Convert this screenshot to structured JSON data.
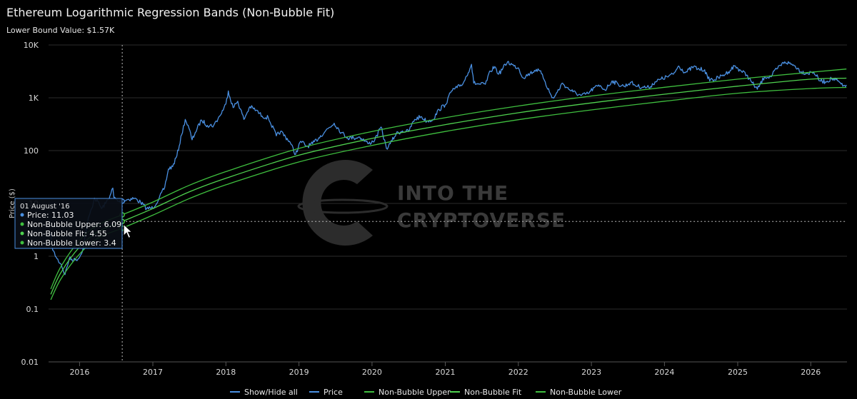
{
  "chart_data": {
    "type": "line",
    "title": "Ethereum Logarithmic Regression Bands (Non-Bubble Fit)",
    "subtitle": "Lower Bound Value: $1.57K",
    "ylabel": "Price ($)",
    "yscale": "log",
    "ylim": [
      0.01,
      10000
    ],
    "y_ticks": [
      {
        "value": 0.01,
        "label": "0.01"
      },
      {
        "value": 0.1,
        "label": "0.1"
      },
      {
        "value": 1,
        "label": "1"
      },
      {
        "value": 10,
        "label": "10"
      },
      {
        "value": 100,
        "label": "100"
      },
      {
        "value": 1000,
        "label": "1K"
      },
      {
        "value": 10000,
        "label": "10K"
      }
    ],
    "xlim": [
      "2015-07-30",
      "2026-07-01"
    ],
    "x_ticks": [
      "2016",
      "2017",
      "2018",
      "2019",
      "2020",
      "2021",
      "2022",
      "2023",
      "2024",
      "2025",
      "2026"
    ],
    "grid": true,
    "legend_position": "bottom",
    "legend_toggle": "Show/Hide all",
    "watermark": [
      "INTO THE",
      "CRYPTOVERSE"
    ],
    "colors": {
      "price": "#4a90e2",
      "bands": "#3fbf3f",
      "bands_fit": "#4fd24f"
    },
    "series": [
      {
        "name": "Price",
        "color": "#4a90e2",
        "points": [
          [
            "2015-08-08",
            2.8
          ],
          [
            "2015-08-20",
            1.3
          ],
          [
            "2015-09-10",
            0.9
          ],
          [
            "2015-10-01",
            0.7
          ],
          [
            "2015-10-20",
            0.45
          ],
          [
            "2015-11-10",
            0.9
          ],
          [
            "2015-12-10",
            0.85
          ],
          [
            "2016-01-01",
            0.95
          ],
          [
            "2016-01-20",
            1.5
          ],
          [
            "2016-02-10",
            4.5
          ],
          [
            "2016-03-01",
            8.0
          ],
          [
            "2016-03-15",
            12.5
          ],
          [
            "2016-04-01",
            11.0
          ],
          [
            "2016-04-20",
            8.0
          ],
          [
            "2016-05-10",
            10.0
          ],
          [
            "2016-06-01",
            14.0
          ],
          [
            "2016-06-15",
            19.5
          ],
          [
            "2016-06-20",
            13.0
          ],
          [
            "2016-07-10",
            11.0
          ],
          [
            "2016-08-01",
            11.03
          ],
          [
            "2016-09-01",
            12.0
          ],
          [
            "2016-10-01",
            12.5
          ],
          [
            "2016-11-01",
            10.5
          ],
          [
            "2016-12-01",
            8.0
          ],
          [
            "2017-01-01",
            8.2
          ],
          [
            "2017-02-01",
            12.5
          ],
          [
            "2017-03-01",
            20.0
          ],
          [
            "2017-03-20",
            45.0
          ],
          [
            "2017-04-10",
            50.0
          ],
          [
            "2017-05-01",
            80.0
          ],
          [
            "2017-05-25",
            200.0
          ],
          [
            "2017-06-12",
            390.0
          ],
          [
            "2017-07-01",
            260.0
          ],
          [
            "2017-07-16",
            160.0
          ],
          [
            "2017-08-01",
            220.0
          ],
          [
            "2017-09-01",
            380.0
          ],
          [
            "2017-10-01",
            300.0
          ],
          [
            "2017-11-01",
            300.0
          ],
          [
            "2017-12-01",
            450.0
          ],
          [
            "2018-01-01",
            760.0
          ],
          [
            "2018-01-13",
            1350.0
          ],
          [
            "2018-02-06",
            650.0
          ],
          [
            "2018-03-01",
            860.0
          ],
          [
            "2018-04-01",
            390.0
          ],
          [
            "2018-05-01",
            680.0
          ],
          [
            "2018-06-01",
            580.0
          ],
          [
            "2018-07-01",
            450.0
          ],
          [
            "2018-08-01",
            420.0
          ],
          [
            "2018-09-10",
            190.0
          ],
          [
            "2018-10-01",
            230.0
          ],
          [
            "2018-11-15",
            150.0
          ],
          [
            "2018-12-15",
            85.0
          ],
          [
            "2019-01-10",
            150.0
          ],
          [
            "2019-02-10",
            120.0
          ],
          [
            "2019-03-10",
            135.0
          ],
          [
            "2019-04-10",
            175.0
          ],
          [
            "2019-05-15",
            240.0
          ],
          [
            "2019-06-26",
            330.0
          ],
          [
            "2019-08-01",
            220.0
          ],
          [
            "2019-09-01",
            175.0
          ],
          [
            "2019-10-01",
            175.0
          ],
          [
            "2019-11-01",
            180.0
          ],
          [
            "2019-12-15",
            135.0
          ],
          [
            "2020-01-15",
            160.0
          ],
          [
            "2020-02-15",
            280.0
          ],
          [
            "2020-03-13",
            110.0
          ],
          [
            "2020-04-01",
            135.0
          ],
          [
            "2020-05-01",
            210.0
          ],
          [
            "2020-06-01",
            235.0
          ],
          [
            "2020-07-01",
            230.0
          ],
          [
            "2020-08-01",
            390.0
          ],
          [
            "2020-09-01",
            440.0
          ],
          [
            "2020-10-01",
            360.0
          ],
          [
            "2020-11-01",
            390.0
          ],
          [
            "2020-12-01",
            600.0
          ],
          [
            "2021-01-01",
            740.0
          ],
          [
            "2021-02-01",
            1350.0
          ],
          [
            "2021-03-01",
            1550.0
          ],
          [
            "2021-04-01",
            1900.0
          ],
          [
            "2021-05-12",
            4300.0
          ],
          [
            "2021-05-23",
            1900.0
          ],
          [
            "2021-06-22",
            1800.0
          ],
          [
            "2021-07-20",
            1800.0
          ],
          [
            "2021-08-15",
            3200.0
          ],
          [
            "2021-09-05",
            3900.0
          ],
          [
            "2021-09-25",
            2800.0
          ],
          [
            "2021-11-08",
            4800.0
          ],
          [
            "2021-12-10",
            4000.0
          ],
          [
            "2022-01-01",
            3700.0
          ],
          [
            "2022-01-24",
            2400.0
          ],
          [
            "2022-03-01",
            2900.0
          ],
          [
            "2022-04-01",
            3450.0
          ],
          [
            "2022-05-01",
            2800.0
          ],
          [
            "2022-05-15",
            2000.0
          ],
          [
            "2022-06-18",
            1000.0
          ],
          [
            "2022-07-01",
            1050.0
          ],
          [
            "2022-08-10",
            1900.0
          ],
          [
            "2022-09-01",
            1550.0
          ],
          [
            "2022-10-01",
            1300.0
          ],
          [
            "2022-11-10",
            1100.0
          ],
          [
            "2022-12-15",
            1200.0
          ],
          [
            "2023-01-15",
            1550.0
          ],
          [
            "2023-02-15",
            1700.0
          ],
          [
            "2023-03-10",
            1400.0
          ],
          [
            "2023-04-15",
            2100.0
          ],
          [
            "2023-05-15",
            1800.0
          ],
          [
            "2023-06-15",
            1650.0
          ],
          [
            "2023-07-15",
            1950.0
          ],
          [
            "2023-08-20",
            1650.0
          ],
          [
            "2023-09-15",
            1600.0
          ],
          [
            "2023-10-15",
            1560.0
          ],
          [
            "2023-11-15",
            2000.0
          ],
          [
            "2023-12-15",
            2250.0
          ],
          [
            "2024-01-15",
            2500.0
          ],
          [
            "2024-02-15",
            2800.0
          ],
          [
            "2024-03-12",
            4000.0
          ],
          [
            "2024-04-15",
            3000.0
          ],
          [
            "2024-05-26",
            3900.0
          ],
          [
            "2024-06-15",
            3500.0
          ],
          [
            "2024-07-20",
            3400.0
          ],
          [
            "2024-08-05",
            2300.0
          ],
          [
            "2024-09-06",
            2200.0
          ],
          [
            "2024-10-15",
            2600.0
          ],
          [
            "2024-11-15",
            3100.0
          ],
          [
            "2024-12-16",
            4000.0
          ],
          [
            "2025-01-15",
            3300.0
          ],
          [
            "2025-02-15",
            2700.0
          ],
          [
            "2025-03-15",
            1900.0
          ],
          [
            "2025-04-09",
            1450.0
          ],
          [
            "2025-05-15",
            2500.0
          ],
          [
            "2025-06-15",
            2500.0
          ],
          [
            "2025-07-15",
            3500.0
          ],
          [
            "2025-08-24",
            4800.0
          ],
          [
            "2025-09-15",
            4500.0
          ],
          [
            "2025-10-15",
            4000.0
          ],
          [
            "2025-11-15",
            3100.0
          ],
          [
            "2025-12-15",
            2900.0
          ],
          [
            "2026-01-15",
            3100.0
          ],
          [
            "2026-02-15",
            2100.0
          ],
          [
            "2026-03-15",
            2000.0
          ],
          [
            "2026-04-15",
            2300.0
          ],
          [
            "2026-05-15",
            2100.0
          ],
          [
            "2026-06-10",
            1650.0
          ],
          [
            "2026-06-28",
            1750.0
          ]
        ]
      },
      {
        "name": "Non-Bubble Upper",
        "color": "#3fbf3f",
        "points": [
          [
            "2015-08-10",
            0.24
          ],
          [
            "2015-10-01",
            0.65
          ],
          [
            "2016-01-01",
            2.0
          ],
          [
            "2016-04-01",
            3.9
          ],
          [
            "2016-08-01",
            6.09
          ],
          [
            "2017-01-01",
            10.6
          ],
          [
            "2017-07-01",
            22.0
          ],
          [
            "2018-01-01",
            40.0
          ],
          [
            "2019-01-01",
            110.0
          ],
          [
            "2020-01-01",
            230.0
          ],
          [
            "2021-01-01",
            420.0
          ],
          [
            "2022-01-01",
            700.0
          ],
          [
            "2023-01-01",
            1080.0
          ],
          [
            "2024-01-01",
            1580.0
          ],
          [
            "2025-01-01",
            2250.0
          ],
          [
            "2026-01-01",
            3050.0
          ],
          [
            "2026-06-28",
            3500.0
          ]
        ]
      },
      {
        "name": "Non-Bubble Fit",
        "color": "#4fd24f",
        "points": [
          [
            "2015-08-10",
            0.19
          ],
          [
            "2015-10-01",
            0.5
          ],
          [
            "2016-01-01",
            1.5
          ],
          [
            "2016-04-01",
            2.9
          ],
          [
            "2016-08-01",
            4.55
          ],
          [
            "2017-01-01",
            8.0
          ],
          [
            "2017-07-01",
            16.5
          ],
          [
            "2018-01-01",
            30.0
          ],
          [
            "2019-01-01",
            82.0
          ],
          [
            "2020-01-01",
            170.0
          ],
          [
            "2021-01-01",
            310.0
          ],
          [
            "2022-01-01",
            520.0
          ],
          [
            "2023-01-01",
            800.0
          ],
          [
            "2024-01-01",
            1170.0
          ],
          [
            "2025-01-01",
            1660.0
          ],
          [
            "2026-01-01",
            2250.0
          ],
          [
            "2026-06-28",
            2350.0
          ]
        ]
      },
      {
        "name": "Non-Bubble Lower",
        "color": "#3fbf3f",
        "points": [
          [
            "2015-08-10",
            0.15
          ],
          [
            "2015-10-01",
            0.38
          ],
          [
            "2016-01-01",
            1.1
          ],
          [
            "2016-04-01",
            2.2
          ],
          [
            "2016-08-01",
            3.4
          ],
          [
            "2017-01-01",
            6.0
          ],
          [
            "2017-07-01",
            12.3
          ],
          [
            "2018-01-01",
            22.5
          ],
          [
            "2019-01-01",
            61.0
          ],
          [
            "2020-01-01",
            125.0
          ],
          [
            "2021-01-01",
            230.0
          ],
          [
            "2022-01-01",
            385.0
          ],
          [
            "2023-01-01",
            590.0
          ],
          [
            "2024-01-01",
            860.0
          ],
          [
            "2025-01-01",
            1220.0
          ],
          [
            "2026-01-01",
            1500.0
          ],
          [
            "2026-06-28",
            1570.0
          ]
        ]
      }
    ],
    "tooltip": {
      "date": "01 August '16",
      "rows": [
        {
          "label": "Price",
          "value": "11.03",
          "color": "#4a90e2"
        },
        {
          "label": "Non-Bubble Upper",
          "value": "6.09",
          "color": "#3fbf3f"
        },
        {
          "label": "Non-Bubble Fit",
          "value": "4.55",
          "color": "#4fd24f"
        },
        {
          "label": "Non-Bubble Lower",
          "value": "3.4",
          "color": "#3fbf3f"
        }
      ]
    }
  }
}
